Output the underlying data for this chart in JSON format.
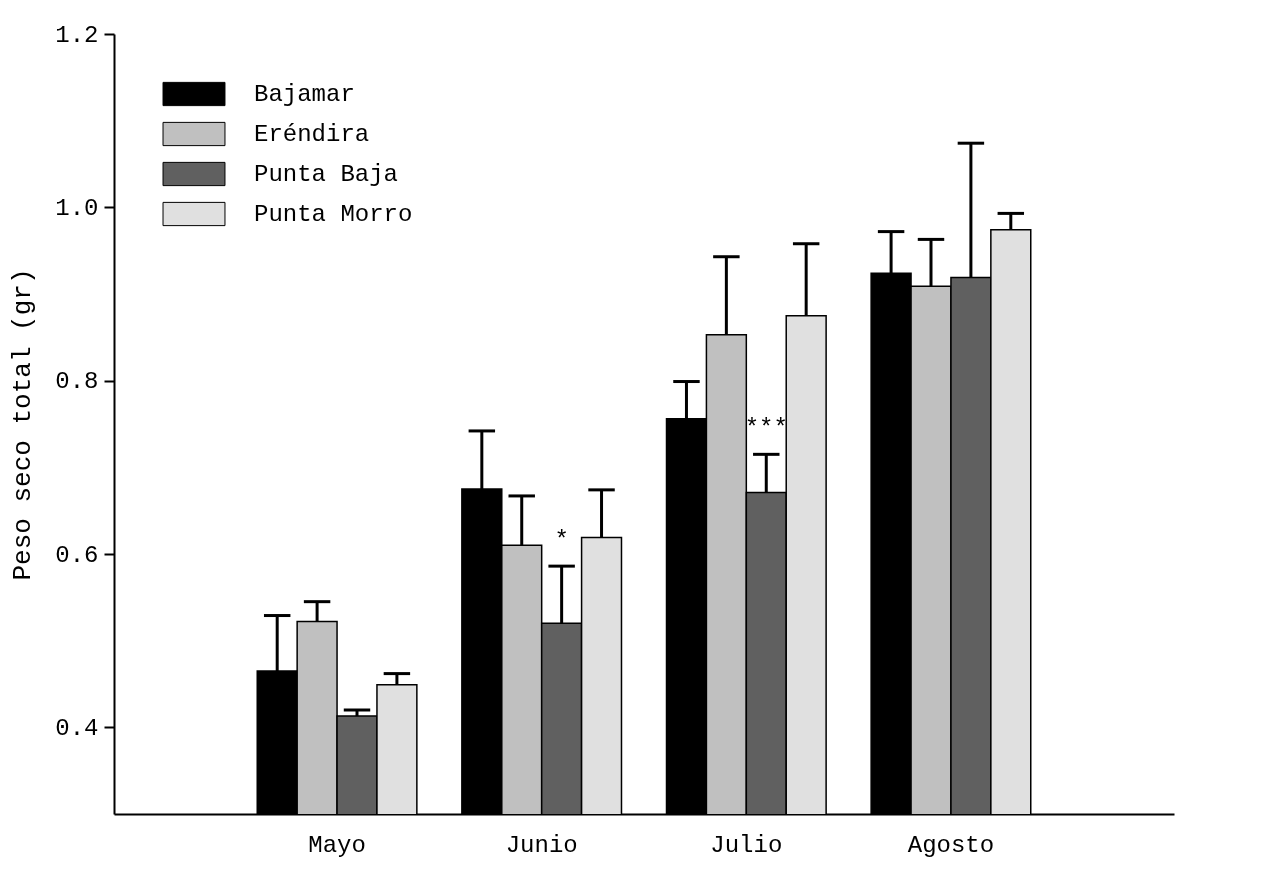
{
  "chart_data": {
    "type": "bar",
    "ylabel": "Peso seco total (gr)",
    "categories": [
      "Mayo",
      "Junio",
      "Julio",
      "Agosto"
    ],
    "series": [
      {
        "name": "Bajamar",
        "color": "#000000",
        "values": [
          0.465,
          0.675,
          0.756,
          0.924
        ],
        "errors": [
          [
            0.465,
            0.529
          ],
          [
            0.675,
            0.742
          ],
          [
            0.756,
            0.799
          ],
          [
            0.924,
            0.972
          ]
        ]
      },
      {
        "name": "Eréndira",
        "color": "#c0c0c0",
        "values": [
          0.522,
          0.61,
          0.853,
          0.909
        ],
        "errors": [
          [
            0.522,
            0.545
          ],
          [
            0.61,
            0.667
          ],
          [
            0.853,
            0.943
          ],
          [
            0.909,
            0.963
          ]
        ]
      },
      {
        "name": "Punta Baja",
        "color": "#606060",
        "values": [
          0.413,
          0.52,
          0.671,
          0.919
        ],
        "errors": [
          [
            0.413,
            0.42
          ],
          [
            0.52,
            0.586
          ],
          [
            0.671,
            0.715
          ],
          [
            0.919,
            1.074
          ]
        ]
      },
      {
        "name": "Punta Morro",
        "color": "#e0e0e0",
        "values": [
          0.449,
          0.619,
          0.875,
          0.974
        ],
        "errors": [
          [
            0.449,
            0.462
          ],
          [
            0.619,
            0.674
          ],
          [
            0.875,
            0.958
          ],
          [
            0.974,
            0.993
          ]
        ]
      }
    ],
    "annotations": [
      {
        "text": "*",
        "x": "Junio",
        "y": 0.586
      },
      {
        "text": "***",
        "x": "Julio",
        "y": 0.715
      }
    ],
    "ylim": [
      0.3,
      1.2
    ],
    "yticks": [
      0.4,
      0.6,
      0.8,
      {
        "value": 1,
        "label": "1.0"
      },
      1.2
    ],
    "grid": false,
    "legend": "top left"
  }
}
